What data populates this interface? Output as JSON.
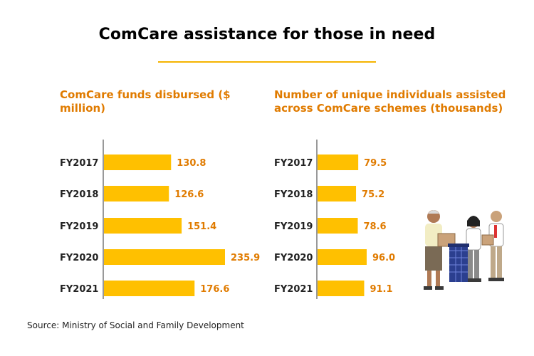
{
  "title": "ComCare assistance for those in need",
  "source": "Source: Ministry of Social and Family Development",
  "colors": {
    "bar": "#FFC000",
    "label": "#E07B00",
    "rule": "#F5B400",
    "axis": "#333333"
  },
  "chart_data": [
    {
      "type": "bar",
      "orientation": "horizontal",
      "title": "ComCare funds disbursed ($ million)",
      "categories": [
        "FY2017",
        "FY2018",
        "FY2019",
        "FY2020",
        "FY2021"
      ],
      "values": [
        130.8,
        126.6,
        151.4,
        235.9,
        176.6
      ],
      "value_labels": [
        "130.8",
        "126.6",
        "151.4",
        "235.9",
        "176.6"
      ],
      "xlim": [
        0,
        235.9
      ]
    },
    {
      "type": "bar",
      "orientation": "horizontal",
      "title": "Number of unique individuals assisted across ComCare schemes (thousands)",
      "categories": [
        "FY2017",
        "FY2018",
        "FY2019",
        "FY2020",
        "FY2021"
      ],
      "values": [
        79.5,
        75.2,
        78.6,
        96.0,
        91.1
      ],
      "value_labels": [
        "79.5",
        "75.2",
        "78.6",
        "96.0",
        "91.1"
      ],
      "xlim": [
        0,
        96.0
      ]
    }
  ],
  "illustration": "people-with-donation-boxes-illustration"
}
